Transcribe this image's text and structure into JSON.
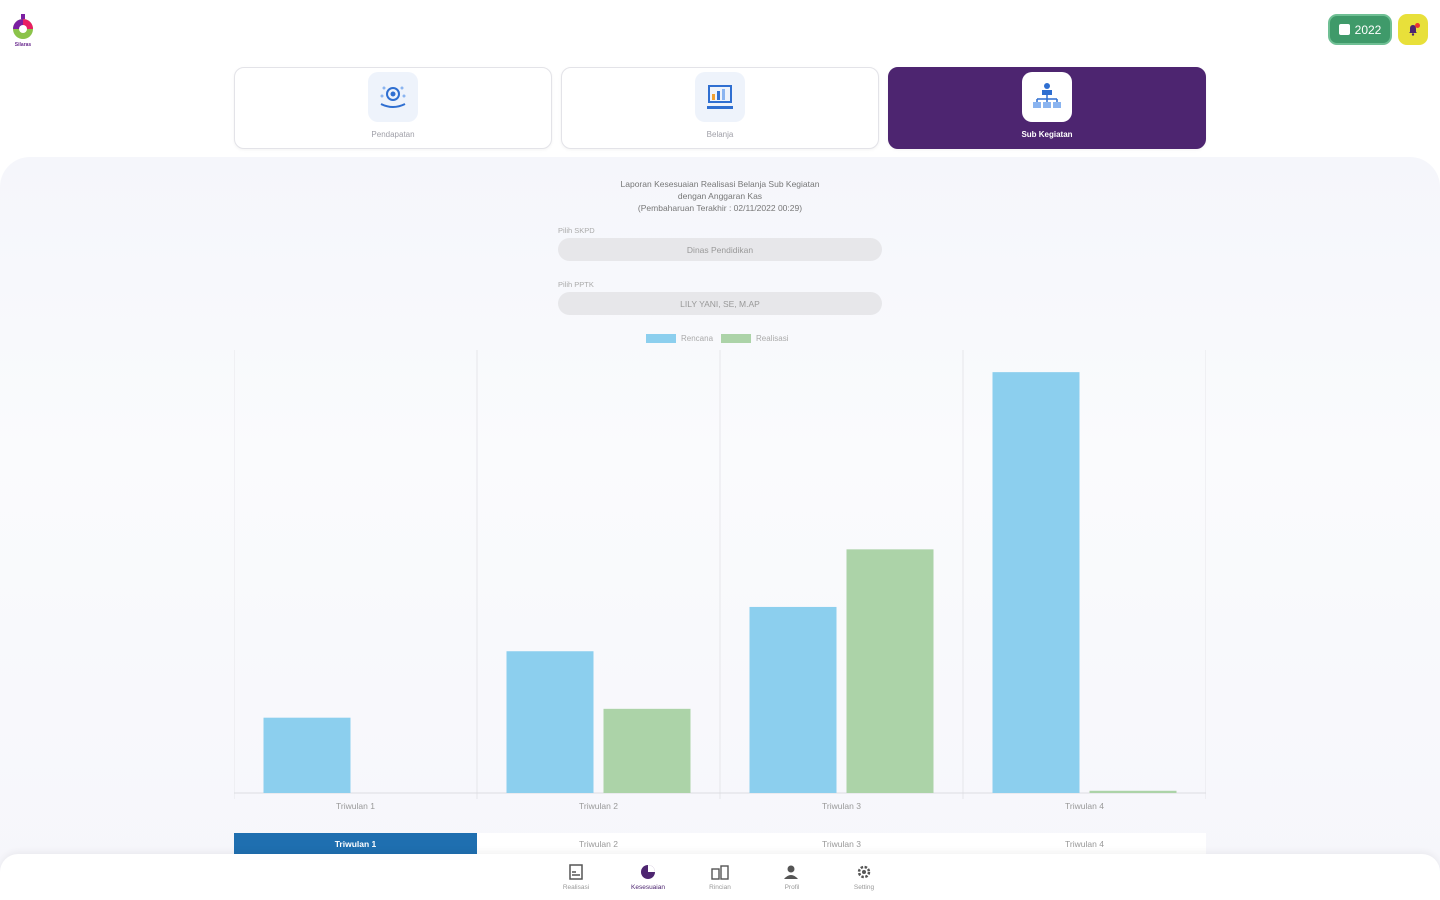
{
  "header": {
    "logo_text": "Silaras",
    "year": "2022"
  },
  "cards": [
    {
      "label": "Pendapatan",
      "icon": "income-icon"
    },
    {
      "label": "Belanja",
      "icon": "spending-icon"
    },
    {
      "label": "Sub Kegiatan",
      "icon": "hierarchy-icon",
      "active": true
    }
  ],
  "report": {
    "title_line1": "Laporan Kesesuaian Realisasi Belanja Sub Kegiatan",
    "title_line2": "dengan Anggaran Kas",
    "title_line3": "(Pembaharuan Terakhir : 02/11/2022 00:29)",
    "skpd_label": "Pilih SKPD",
    "skpd_value": "Dinas Pendidikan",
    "pptk_label": "Pilih PPTK",
    "pptk_value": "LILY YANI, SE, M.AP"
  },
  "chart_data": {
    "type": "bar",
    "categories": [
      "Triwulan 1",
      "Triwulan 2",
      "Triwulan 3",
      "Triwulan 4"
    ],
    "series": [
      {
        "name": "Rencana",
        "color": "#8ccfee",
        "values": [
          17,
          32,
          42,
          95
        ]
      },
      {
        "name": "Realisasi",
        "color": "#acd3a8",
        "values": [
          0,
          19,
          55,
          0.5
        ]
      }
    ],
    "ylim": [
      0,
      100
    ],
    "grid": true,
    "legend": "top-center"
  },
  "tabs": [
    "Triwulan 1",
    "Triwulan 2",
    "Triwulan 3",
    "Triwulan 4"
  ],
  "nav": [
    {
      "label": "Realisasi",
      "icon": "report-icon"
    },
    {
      "label": "Kesesuaian",
      "icon": "pie-chart-icon",
      "active": true
    },
    {
      "label": "Rincian",
      "icon": "building-icon"
    },
    {
      "label": "Profil",
      "icon": "user-icon"
    },
    {
      "label": "Setting",
      "icon": "gear-icon"
    }
  ]
}
